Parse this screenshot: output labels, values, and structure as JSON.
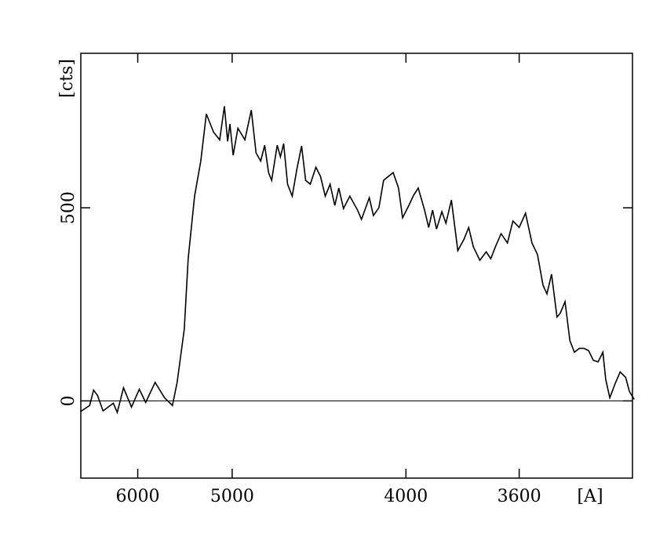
{
  "chart_data": {
    "type": "line",
    "xscale": "inverse-square",
    "xlabel": "[A]",
    "ylabel": "[cts]",
    "x": [
      7013,
      6812,
      6733,
      6656,
      6553,
      6374,
      6309,
      6209,
      6090,
      5978,
      5892,
      5771,
      5657,
      5567,
      5515,
      5439,
      5399,
      5335,
      5275,
      5223,
      5158,
      5104,
      5064,
      5037,
      5018,
      4992,
      4954,
      4900,
      4852,
      4817,
      4784,
      4756,
      4729,
      4708,
      4671,
      4650,
      4629,
      4604,
      4575,
      4546,
      4518,
      4494,
      4467,
      4435,
      4409,
      4383,
      4357,
      4332,
      4311,
      4287,
      4255,
      4217,
      4198,
      4161,
      4142,
      4117,
      4096,
      4075,
      4054,
      4031,
      4014,
      3988,
      3969,
      3950,
      3925,
      3909,
      3894,
      3879,
      3859,
      3844,
      3824,
      3801,
      3779,
      3763,
      3747,
      3725,
      3704,
      3689,
      3674,
      3656,
      3636,
      3619,
      3600,
      3581,
      3562,
      3546,
      3530,
      3519,
      3506,
      3491,
      3482,
      3469,
      3456,
      3444,
      3431,
      3419,
      3407,
      3395,
      3383,
      3371,
      3364,
      3354,
      3341,
      3329,
      3316,
      3307,
      3296
    ],
    "series": [
      {
        "color": "#000000",
        "values": [
          -28,
          -12,
          28,
          14,
          -26,
          -6,
          -30,
          34,
          -16,
          30,
          -4,
          48,
          8,
          -12,
          48,
          186,
          368,
          530,
          621,
          743,
          696,
          676,
          763,
          672,
          717,
          636,
          706,
          676,
          753,
          642,
          621,
          662,
          591,
          571,
          662,
          632,
          666,
          561,
          530,
          601,
          660,
          571,
          561,
          605,
          581,
          530,
          561,
          506,
          551,
          498,
          530,
          494,
          470,
          526,
          480,
          500,
          571,
          581,
          591,
          551,
          474,
          506,
          532,
          551,
          494,
          449,
          494,
          445,
          490,
          460,
          520,
          389,
          419,
          449,
          399,
          364,
          386,
          368,
          399,
          433,
          409,
          466,
          449,
          486,
          409,
          379,
          299,
          277,
          328,
          217,
          227,
          257,
          156,
          126,
          136,
          136,
          130,
          105,
          101,
          126,
          55,
          8,
          45,
          75,
          61,
          24,
          4
        ]
      }
    ],
    "hlines": [
      0
    ],
    "xlim": [
      7000,
      3300
    ],
    "xticks": [
      6000,
      5000,
      4000,
      3600
    ],
    "ylim": [
      -200,
      900
    ],
    "yticks": [
      0,
      500
    ]
  }
}
